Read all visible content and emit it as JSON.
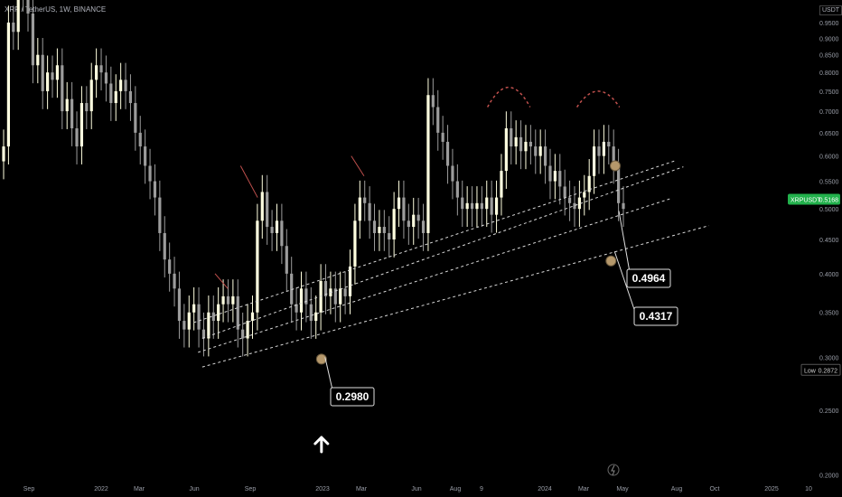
{
  "header": {
    "symbol_title": "XRP / TetherUS, 1W, BINANCE",
    "currency": "USDT"
  },
  "colors": {
    "background": "#000000",
    "candle_up": "#ffffe0",
    "candle_down": "#9c9c9c",
    "trendline": "#d9d9d9",
    "pattern_arc": "#c0504d",
    "price_marker": "#b5986b",
    "current_price_tag": "#22b14c",
    "axis_text": "#9a9ea8"
  },
  "chart_data": {
    "type": "candlestick",
    "title": "XRP / TetherUS, 1W, BINANCE",
    "y_scale": "log",
    "ylim": [
      0.196,
      0.98
    ],
    "y_ticks": [
      "0.2000",
      "0.2500",
      "0.3000",
      "0.3500",
      "0.4000",
      "0.4500",
      "0.5000",
      "0.5500",
      "0.6000",
      "0.6500",
      "0.7000",
      "0.7500",
      "0.8000",
      "0.8500",
      "0.9000",
      "0.9500"
    ],
    "x_ticks": [
      "Sep",
      "2022",
      "Mar",
      "Jun",
      "Sep",
      "2023",
      "Mar",
      "Jun",
      "Aug",
      "9",
      "2024",
      "Mar",
      "May",
      "Aug",
      "Oct",
      "2025",
      "10"
    ],
    "current_price_label": "XRPUSDT",
    "current_price": 0.5168,
    "low_label": "Low",
    "low_value": "0.2872",
    "annotations": [
      {
        "label": "0.4964",
        "value": 0.4964
      },
      {
        "label": "0.4317",
        "value": 0.4317
      },
      {
        "label": "0.2980",
        "value": 0.298
      }
    ],
    "candles_close": [
      0.62,
      0.95,
      0.92,
      1.12,
      1.05,
      0.98,
      0.82,
      0.85,
      0.75,
      0.8,
      0.78,
      0.82,
      0.7,
      0.73,
      0.66,
      0.62,
      0.72,
      0.7,
      0.78,
      0.82,
      0.8,
      0.77,
      0.72,
      0.75,
      0.78,
      0.75,
      0.72,
      0.65,
      0.62,
      0.58,
      0.55,
      0.52,
      0.46,
      0.42,
      0.4,
      0.38,
      0.34,
      0.33,
      0.35,
      0.36,
      0.33,
      0.32,
      0.35,
      0.34,
      0.36,
      0.37,
      0.36,
      0.37,
      0.33,
      0.32,
      0.34,
      0.35,
      0.48,
      0.53,
      0.47,
      0.46,
      0.48,
      0.44,
      0.4,
      0.36,
      0.35,
      0.38,
      0.36,
      0.34,
      0.35,
      0.39,
      0.37,
      0.38,
      0.36,
      0.38,
      0.37,
      0.41,
      0.48,
      0.52,
      0.51,
      0.48,
      0.46,
      0.47,
      0.46,
      0.45,
      0.5,
      0.52,
      0.48,
      0.47,
      0.49,
      0.48,
      0.46,
      0.74,
      0.71,
      0.65,
      0.63,
      0.58,
      0.55,
      0.52,
      0.5,
      0.51,
      0.5,
      0.51,
      0.5,
      0.52,
      0.49,
      0.52,
      0.57,
      0.66,
      0.62,
      0.64,
      0.61,
      0.63,
      0.62,
      0.6,
      0.62,
      0.58,
      0.55,
      0.57,
      0.54,
      0.52,
      0.51,
      0.5,
      0.52,
      0.53,
      0.56,
      0.62,
      0.6,
      0.63,
      0.62,
      0.58,
      0.51,
      0.5
    ],
    "trendlines": [
      {
        "p1": [
          "2022-05-30",
          0.338
        ],
        "p2": [
          "2024-07-29",
          0.59
        ]
      },
      {
        "p1": [
          "2022-06-13",
          0.32
        ],
        "p2": [
          "2024-08-12",
          0.578
        ]
      },
      {
        "p1": [
          "2022-06-06",
          0.305
        ],
        "p2": [
          "2024-07-22",
          0.518
        ]
      },
      {
        "p1": [
          "2022-06-13",
          0.29
        ],
        "p2": [
          "2024-09-23",
          0.472
        ]
      }
    ]
  }
}
